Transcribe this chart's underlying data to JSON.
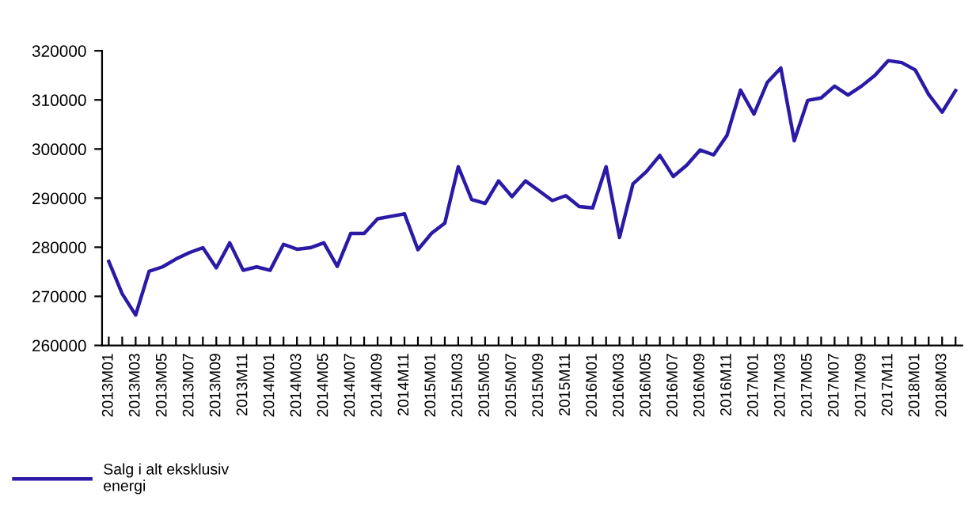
{
  "chart_data": {
    "type": "line",
    "categories": [
      "2013M01",
      null,
      "2013M03",
      null,
      "2013M05",
      null,
      "2013M07",
      null,
      "2013M09",
      null,
      "2013M11",
      null,
      "2014M01",
      null,
      "2014M03",
      null,
      "2014M05",
      null,
      "2014M07",
      null,
      "2014M09",
      null,
      "2014M11",
      null,
      "2015M01",
      null,
      "2015M03",
      null,
      "2015M05",
      null,
      "2015M07",
      null,
      "2015M09",
      null,
      "2015M11",
      null,
      "2016M01",
      null,
      "2016M03",
      null,
      "2016M05",
      null,
      "2016M07",
      null,
      "2016M09",
      null,
      "2016M11",
      null,
      "2017M01",
      null,
      "2017M03",
      null,
      "2017M05",
      null,
      "2017M07",
      null,
      "2017M09",
      null,
      "2017M11",
      null,
      "2018M01",
      null,
      "2018M03",
      null
    ],
    "series": [
      {
        "name": "Salg i alt eksklusiv energi",
        "color": "#2a1aa6",
        "values": [
          277100,
          270500,
          266200,
          275100,
          276000,
          277600,
          278900,
          279900,
          275800,
          280900,
          275300,
          276000,
          275300,
          280600,
          279600,
          279900,
          280900,
          276100,
          282800,
          282800,
          285800,
          286300,
          286800,
          279500,
          282800,
          284900,
          296400,
          289700,
          288900,
          293500,
          290300,
          293500,
          291500,
          289500,
          290500,
          288300,
          288000,
          296400,
          282000,
          292900,
          295400,
          298700,
          294400,
          296700,
          299800,
          298800,
          302800,
          312000,
          307100,
          313600,
          316500,
          301700,
          309900,
          310400,
          312800,
          311000,
          312800,
          315000,
          318000,
          317600,
          316100,
          311100,
          307500,
          311900
        ]
      }
    ],
    "ylim": [
      260000,
      320000
    ],
    "yticks": [
      260000,
      270000,
      280000,
      290000,
      300000,
      310000,
      320000
    ],
    "grid": false,
    "legend": "bottom left",
    "marker": "none",
    "line_style": "solid"
  }
}
